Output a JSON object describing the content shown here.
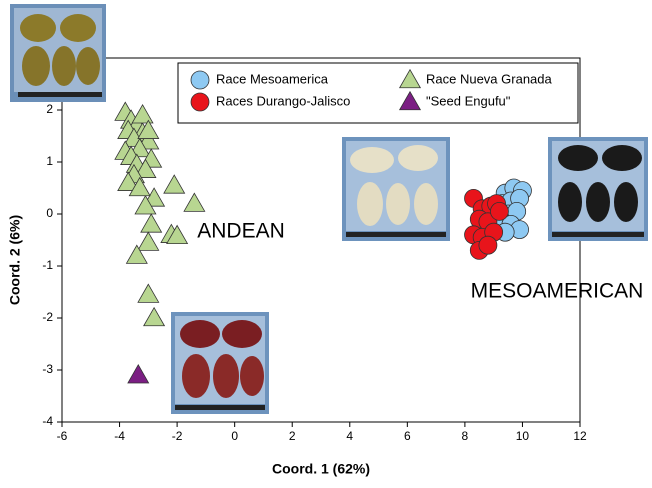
{
  "chart_data": {
    "type": "scatter",
    "xlabel": "Coord. 1 (62%)",
    "ylabel": "Coord. 2 (6%)",
    "xlim": [
      -6,
      12
    ],
    "ylim": [
      -4,
      3
    ],
    "xticks": [
      -6,
      -4,
      -2,
      0,
      2,
      4,
      6,
      8,
      10,
      12
    ],
    "yticks": [
      -4,
      -3,
      -2,
      -1,
      0,
      1,
      2
    ],
    "legend": "upper right",
    "annotations": [
      {
        "text": "ANDEAN",
        "x": -1.3,
        "y": -0.35
      },
      {
        "text": "MESOAMERICAN",
        "x": 8.2,
        "y": -1.5
      }
    ],
    "series": [
      {
        "name": "Race Mesoamerica",
        "color": "#8ec9f2",
        "marker": "circle",
        "x": [
          9.4,
          9.7,
          10.0,
          9.3,
          9.6,
          9.9,
          9.5,
          9.8,
          9.2,
          9.6,
          9.9,
          9.4
        ],
        "y": [
          0.4,
          0.5,
          0.45,
          0.2,
          0.25,
          0.3,
          0.0,
          0.05,
          -0.1,
          -0.2,
          -0.3,
          -0.35
        ]
      },
      {
        "name": "Races Durango-Jalisco",
        "color": "#e8141b",
        "marker": "circle",
        "x": [
          8.3,
          8.6,
          8.9,
          9.1,
          8.5,
          8.8,
          8.3,
          8.6,
          9.0,
          8.5,
          8.8,
          9.2
        ],
        "y": [
          0.3,
          0.1,
          0.15,
          0.2,
          -0.1,
          -0.15,
          -0.4,
          -0.45,
          -0.35,
          -0.7,
          -0.6,
          0.05
        ]
      },
      {
        "name": "Race Nueva Granada",
        "color": "#b8d691",
        "marker": "triangle",
        "x": [
          -3.8,
          -3.6,
          -3.4,
          -3.2,
          -3.7,
          -3.5,
          -3.0,
          -3.3,
          -3.8,
          -3.6,
          -2.9,
          -3.4,
          -3.1,
          -3.5,
          -3.7,
          -2.8,
          -2.1,
          -1.4,
          -3.1,
          -2.9,
          -2.2,
          -2.0,
          -3.0,
          -3.4,
          -3.0,
          -2.8,
          -3.2,
          -3.0,
          -3.3
        ],
        "y": [
          1.95,
          1.8,
          1.7,
          1.55,
          1.6,
          1.45,
          1.4,
          1.25,
          1.2,
          1.1,
          1.05,
          0.95,
          0.85,
          0.75,
          0.6,
          0.3,
          0.55,
          0.2,
          0.15,
          -0.2,
          -0.4,
          -0.42,
          -0.55,
          -0.8,
          -1.55,
          -2.0,
          1.9,
          1.6,
          0.5
        ]
      },
      {
        "name": "\"Seed Engufu\"",
        "color": "#7b1f83",
        "marker": "triangle",
        "x": [
          -3.35
        ],
        "y": [
          -3.1
        ]
      }
    ]
  }
}
